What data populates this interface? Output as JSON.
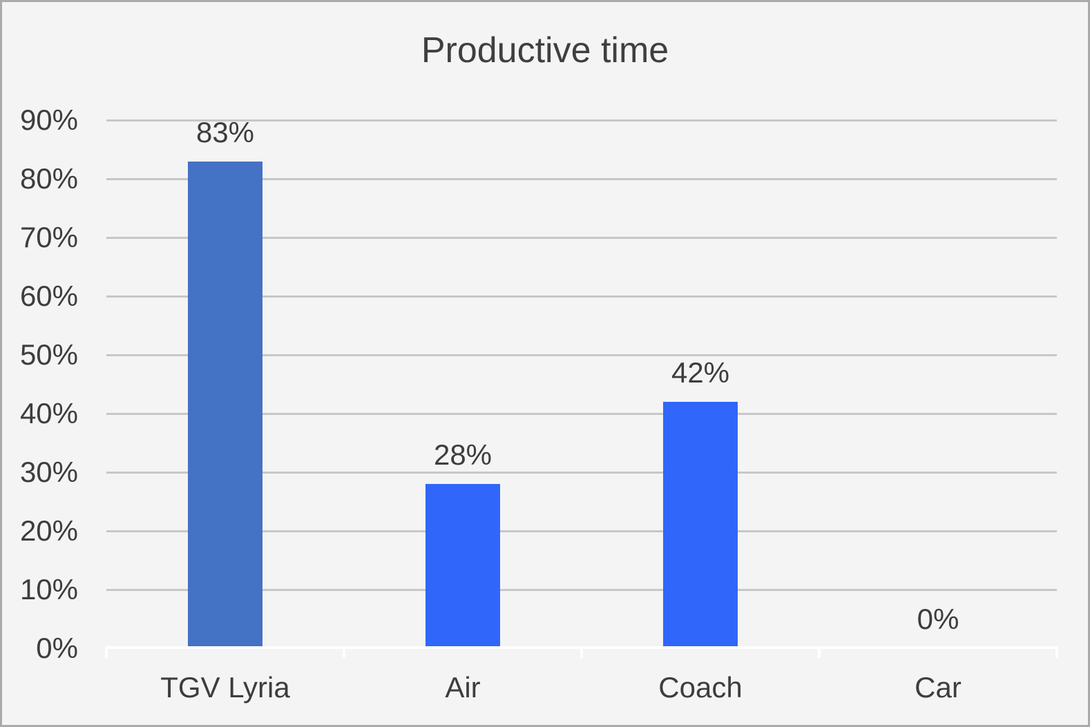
{
  "window": {
    "background_color": "#f4f4f4",
    "border_color": "#aaaaaa"
  },
  "chart_data": {
    "type": "bar",
    "title": "Productive time",
    "categories": [
      "TGV Lyria",
      "Air",
      "Coach",
      "Car"
    ],
    "values": [
      83,
      28,
      42,
      0
    ],
    "value_labels": [
      "83%",
      "28%",
      "42%",
      "0%"
    ],
    "bar_colors": [
      "#4472c4",
      "#3066fa",
      "#3066fa",
      "#3066fa"
    ],
    "xlabel": "",
    "ylabel": "",
    "ylim": [
      0,
      90
    ],
    "ytick_step": 10,
    "ytick_labels": [
      "0%",
      "10%",
      "20%",
      "30%",
      "40%",
      "50%",
      "60%",
      "70%",
      "80%",
      "90%"
    ],
    "grid": true,
    "gridline_color": "#c7c7c7",
    "axis_line_color": "#ffffff",
    "text_color": "#3d3d3d",
    "legend": false
  }
}
